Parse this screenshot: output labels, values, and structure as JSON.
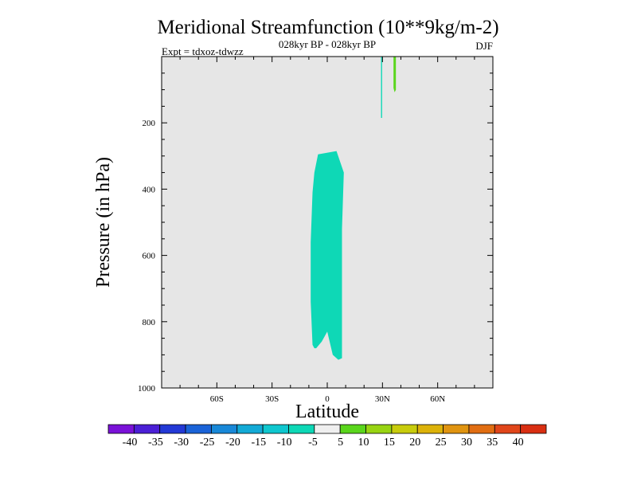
{
  "chart_data": {
    "type": "heatmap",
    "title": "Meridional Streamfunction (10**9kg/m-2)",
    "subtitle": "028kyr BP - 028kyr BP",
    "left_label": "Expt = tdxoz-tdwzz",
    "right_label": "DJF",
    "xlabel": "Latitude",
    "ylabel": "Pressure (in hPa)",
    "xlim": [
      -90,
      90
    ],
    "ylim": [
      1000,
      0
    ],
    "x_ticks": [
      {
        "value": -60,
        "label": "60S"
      },
      {
        "value": -30,
        "label": "30S"
      },
      {
        "value": 0,
        "label": "0"
      },
      {
        "value": 30,
        "label": "30N"
      },
      {
        "value": 60,
        "label": "60N"
      }
    ],
    "y_ticks": [
      {
        "value": 200,
        "label": "200"
      },
      {
        "value": 400,
        "label": "400"
      },
      {
        "value": 600,
        "label": "600"
      },
      {
        "value": 800,
        "label": "800"
      },
      {
        "value": 1000,
        "label": "1000"
      }
    ],
    "background_color": "#e6e6e6",
    "colorbar": {
      "levels": [
        -40,
        -35,
        -30,
        -25,
        -20,
        -15,
        -10,
        -5,
        5,
        10,
        15,
        20,
        25,
        30,
        35,
        40
      ],
      "colors": [
        "#7a12d8",
        "#4b1fd6",
        "#2339d6",
        "#1a63d8",
        "#1888d8",
        "#13aad6",
        "#0fc7cf",
        "#0ed8b6",
        "#efefef",
        "#5ad61c",
        "#98d412",
        "#c8cc0c",
        "#dcb209",
        "#e09410",
        "#e16e12",
        "#e0461a",
        "#d92f12"
      ]
    },
    "regions": [
      {
        "name": "negative-cell",
        "range": "-10 to -5",
        "color": "#0ed8b6",
        "outline": [
          [
            -5,
            295
          ],
          [
            5,
            285
          ],
          [
            9,
            350
          ],
          [
            8,
            520
          ],
          [
            8,
            910
          ],
          [
            6,
            915
          ],
          [
            3,
            900
          ],
          [
            0,
            830
          ],
          [
            -3,
            860
          ],
          [
            -6,
            880
          ],
          [
            -7,
            880
          ],
          [
            -8,
            870
          ],
          [
            -9,
            740
          ],
          [
            -9,
            560
          ],
          [
            -8,
            410
          ],
          [
            -7,
            350
          ]
        ]
      },
      {
        "name": "negative-thin-strip",
        "range": "-10 to -5",
        "color": "#0ed8b6",
        "outline": [
          [
            29.2,
            0
          ],
          [
            29.8,
            0
          ],
          [
            29.8,
            185
          ],
          [
            29.2,
            185
          ]
        ]
      },
      {
        "name": "positive-strip",
        "range": "5 to 10",
        "color": "#5ad61c",
        "outline": [
          [
            36,
            0
          ],
          [
            37.3,
            0
          ],
          [
            37.3,
            100
          ],
          [
            36.6,
            108
          ],
          [
            36,
            95
          ]
        ]
      }
    ]
  }
}
